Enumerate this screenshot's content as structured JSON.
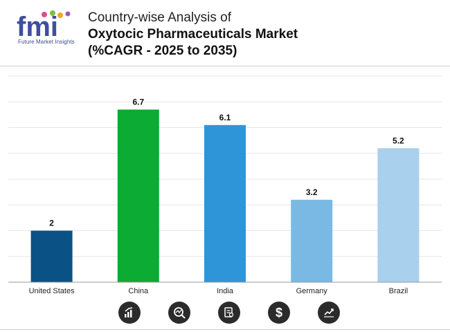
{
  "header": {
    "logo_text": "fmi",
    "logo_subtitle": "Future Market Insights",
    "title_line1": "Country-wise Analysis of",
    "title_line2": "Oxytocic Pharmaceuticals Market",
    "title_line3": "(%CAGR - 2025 to 2035)"
  },
  "chart_data": {
    "type": "bar",
    "categories": [
      "United States",
      "China",
      "India",
      "Germany",
      "Brazil"
    ],
    "values": [
      2,
      6.7,
      6.1,
      3.2,
      5.2
    ],
    "value_labels": [
      "2",
      "6.7",
      "6.1",
      "3.2",
      "5.2"
    ],
    "colors": [
      "#0a5286",
      "#0bab34",
      "#2f95d9",
      "#7ab9e3",
      "#a9d0ec"
    ],
    "ylim": [
      0,
      8
    ],
    "grid": true,
    "title": "",
    "xlabel": "",
    "ylabel": ""
  },
  "footer_icons": [
    "growth-chart-icon",
    "magnifier-trend-icon",
    "document-search-icon",
    "dollar-icon",
    "line-chart-icon"
  ]
}
